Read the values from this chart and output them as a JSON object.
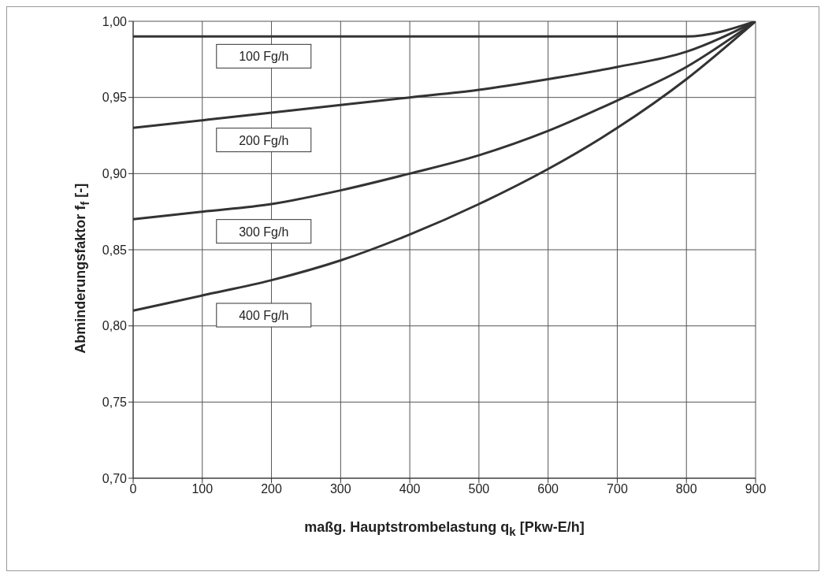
{
  "chart_data": {
    "type": "line",
    "xlabel": "maßg. Hauptstrombelastung q$_{k}$ [Pkw-E/h]",
    "ylabel": "Abminderungsfaktor f$_{f}$ [-]",
    "x": [
      0,
      100,
      200,
      300,
      400,
      500,
      600,
      700,
      800,
      900
    ],
    "series": [
      {
        "name": "100 Fg/h",
        "color": "#333333",
        "values": [
          0.99,
          0.99,
          0.99,
          0.99,
          0.99,
          0.99,
          0.99,
          0.99,
          0.99,
          1.0
        ]
      },
      {
        "name": "200 Fg/h",
        "color": "#333333",
        "values": [
          0.93,
          0.935,
          0.94,
          0.945,
          0.95,
          0.955,
          0.962,
          0.97,
          0.98,
          1.0
        ]
      },
      {
        "name": "300 Fg/h",
        "color": "#333333",
        "values": [
          0.87,
          0.875,
          0.88,
          0.889,
          0.9,
          0.912,
          0.928,
          0.948,
          0.97,
          1.0
        ]
      },
      {
        "name": "400 Fg/h",
        "color": "#333333",
        "values": [
          0.81,
          0.82,
          0.83,
          0.843,
          0.86,
          0.88,
          0.903,
          0.93,
          0.962,
          1.0
        ]
      }
    ],
    "xlim": [
      0,
      900
    ],
    "xticks": [
      0,
      100,
      200,
      300,
      400,
      500,
      600,
      700,
      800,
      900
    ],
    "ylim": [
      0.7,
      1.0
    ],
    "yticks": [
      {
        "value": 0.7,
        "label": "0,70"
      },
      {
        "value": 0.75,
        "label": "0,75"
      },
      {
        "value": 0.8,
        "label": "0,80"
      },
      {
        "value": 0.85,
        "label": "0,85"
      },
      {
        "value": 0.9,
        "label": "0,90"
      },
      {
        "value": 0.95,
        "label": "0,95"
      },
      {
        "value": 1.0,
        "label": "1,00"
      }
    ],
    "grid": true,
    "legend": false,
    "marker": "none",
    "line_style": "solid"
  }
}
